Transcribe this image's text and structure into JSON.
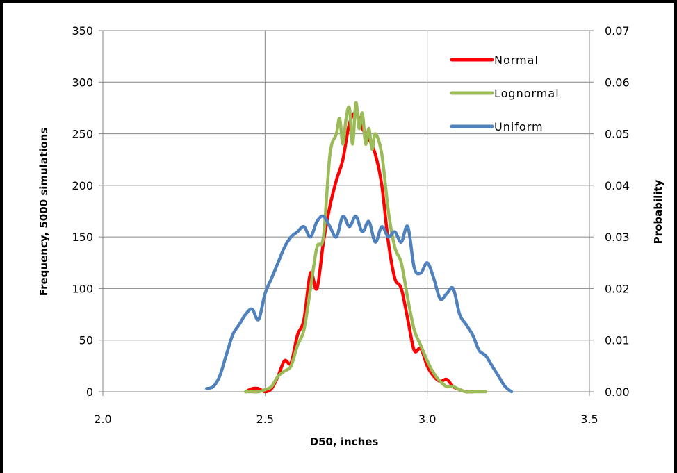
{
  "chart_data": {
    "type": "line",
    "title": "",
    "xlabel": "D50, inches",
    "ylabel": "Frequency, 5000 simulations",
    "y2label": "Probability",
    "xlim": [
      2.0,
      3.5
    ],
    "ylim": [
      0,
      350
    ],
    "y2lim": [
      0,
      0.07
    ],
    "x_ticks": [
      "2.0",
      "2.5",
      "3.0",
      "3.5"
    ],
    "y_ticks": [
      "0",
      "50",
      "100",
      "150",
      "200",
      "250",
      "300",
      "350"
    ],
    "y2_ticks": [
      "0.00",
      "0.01",
      "0.02",
      "0.03",
      "0.04",
      "0.05",
      "0.06",
      "0.07"
    ],
    "grid": true,
    "legend_position": "top-right",
    "series": [
      {
        "name": "Normal",
        "color": "#ff0000",
        "x": [
          2.44,
          2.46,
          2.48,
          2.5,
          2.52,
          2.54,
          2.56,
          2.58,
          2.6,
          2.62,
          2.64,
          2.66,
          2.68,
          2.7,
          2.72,
          2.74,
          2.76,
          2.78,
          2.8,
          2.82,
          2.84,
          2.86,
          2.88,
          2.9,
          2.92,
          2.94,
          2.96,
          2.98,
          3.0,
          3.02,
          3.04,
          3.06,
          3.08,
          3.1,
          3.12,
          3.14
        ],
        "values": [
          0,
          3,
          3,
          0,
          3,
          15,
          30,
          28,
          55,
          70,
          115,
          100,
          145,
          180,
          205,
          225,
          260,
          270,
          255,
          245,
          230,
          200,
          145,
          110,
          100,
          70,
          40,
          42,
          25,
          15,
          10,
          12,
          5,
          2,
          0,
          0
        ]
      },
      {
        "name": "Lognormal",
        "color": "#9bbb59",
        "x": [
          2.44,
          2.46,
          2.48,
          2.5,
          2.52,
          2.54,
          2.56,
          2.58,
          2.6,
          2.62,
          2.64,
          2.66,
          2.68,
          2.7,
          2.72,
          2.73,
          2.74,
          2.75,
          2.76,
          2.77,
          2.78,
          2.79,
          2.8,
          2.81,
          2.82,
          2.83,
          2.84,
          2.86,
          2.88,
          2.9,
          2.92,
          2.94,
          2.96,
          2.98,
          3.0,
          3.02,
          3.04,
          3.06,
          3.08,
          3.1,
          3.12,
          3.14,
          3.16,
          3.18
        ],
        "values": [
          0,
          0,
          0,
          2,
          5,
          15,
          20,
          25,
          45,
          60,
          100,
          140,
          150,
          230,
          250,
          265,
          240,
          265,
          275,
          240,
          280,
          255,
          270,
          240,
          255,
          235,
          250,
          230,
          175,
          140,
          125,
          90,
          60,
          45,
          30,
          18,
          10,
          5,
          5,
          2,
          0,
          0,
          0,
          0
        ]
      },
      {
        "name": "Uniform",
        "color": "#4f81bd",
        "x": [
          2.32,
          2.34,
          2.36,
          2.38,
          2.4,
          2.42,
          2.44,
          2.46,
          2.48,
          2.5,
          2.52,
          2.54,
          2.56,
          2.58,
          2.6,
          2.62,
          2.64,
          2.66,
          2.68,
          2.7,
          2.72,
          2.74,
          2.76,
          2.78,
          2.8,
          2.82,
          2.84,
          2.86,
          2.88,
          2.9,
          2.92,
          2.94,
          2.96,
          2.98,
          3.0,
          3.02,
          3.04,
          3.06,
          3.08,
          3.1,
          3.12,
          3.14,
          3.16,
          3.18,
          3.2,
          3.22,
          3.24,
          3.26
        ],
        "values": [
          3,
          5,
          15,
          35,
          55,
          65,
          75,
          80,
          70,
          95,
          110,
          125,
          140,
          150,
          155,
          160,
          150,
          165,
          170,
          160,
          150,
          170,
          160,
          170,
          155,
          165,
          145,
          160,
          150,
          155,
          145,
          160,
          120,
          115,
          125,
          110,
          90,
          95,
          100,
          75,
          65,
          55,
          40,
          35,
          25,
          15,
          5,
          0
        ]
      }
    ]
  }
}
